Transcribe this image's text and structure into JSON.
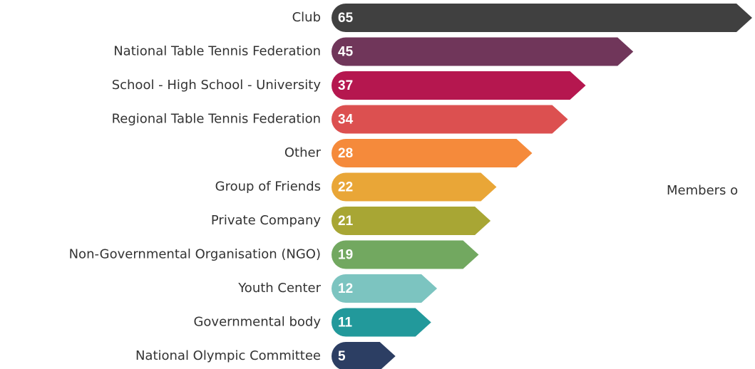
{
  "chart_data": {
    "type": "bar",
    "orientation": "horizontal",
    "categories": [
      "Club",
      "National Table Tennis Federation",
      "School - High School - University",
      "Regional Table Tennis Federation",
      "Other",
      "Group of Friends",
      "Private Company",
      "Non-Governmental Organisation (NGO)",
      "Youth Center",
      "Governmental body",
      "National Olympic Committee"
    ],
    "values": [
      65,
      45,
      37,
      34,
      28,
      22,
      21,
      19,
      12,
      11,
      5
    ],
    "colors": [
      "#404040",
      "#70365a",
      "#b5174f",
      "#dc5050",
      "#f58a3b",
      "#e9a637",
      "#a8a634",
      "#72a860",
      "#7cc4c0",
      "#22999b",
      "#2c3e63"
    ],
    "annotation": "Members o"
  }
}
